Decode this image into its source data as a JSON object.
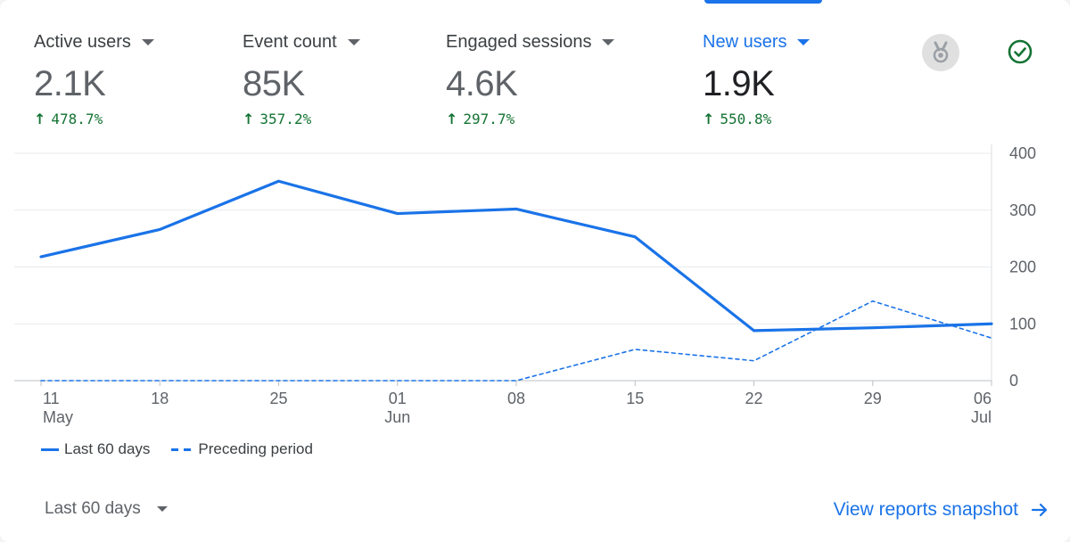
{
  "metrics": [
    {
      "label": "Active users",
      "value": "2.1K",
      "change": "478.7%",
      "selected": false
    },
    {
      "label": "Event count",
      "value": "85K",
      "change": "357.2%",
      "selected": false
    },
    {
      "label": "Engaged sessions",
      "value": "4.6K",
      "change": "297.7%",
      "selected": false
    },
    {
      "label": "New users",
      "value": "1.9K",
      "change": "550.8%",
      "selected": true
    }
  ],
  "icons": {
    "medal": "medal-icon",
    "check": "check-circle-icon",
    "change_arrow": "arrow-up-icon",
    "link_arrow": "arrow-right-icon"
  },
  "colors": {
    "accent": "#1a73e8",
    "positive": "#137333",
    "text": "#3c4043",
    "muted": "#5f6368",
    "grid": "#e0e0e0"
  },
  "chart_data": {
    "type": "line",
    "x_ticks": [
      {
        "day": "11",
        "month": "May"
      },
      {
        "day": "18",
        "month": ""
      },
      {
        "day": "25",
        "month": ""
      },
      {
        "day": "01",
        "month": "Jun"
      },
      {
        "day": "08",
        "month": ""
      },
      {
        "day": "15",
        "month": ""
      },
      {
        "day": "22",
        "month": ""
      },
      {
        "day": "29",
        "month": ""
      },
      {
        "day": "06",
        "month": "Jul"
      }
    ],
    "y_ticks": [
      "400",
      "300",
      "200",
      "100",
      "0"
    ],
    "ylim": [
      0,
      400
    ],
    "y_axis_position": "right",
    "grid": true,
    "series": [
      {
        "name": "Last 60 days",
        "style": "solid",
        "values": [
          218,
          266,
          351,
          294,
          302,
          253,
          88,
          93,
          100
        ]
      },
      {
        "name": "Preceding period",
        "style": "dashed",
        "values": [
          0,
          0,
          0,
          0,
          0,
          55,
          35,
          140,
          75
        ]
      }
    ]
  },
  "legend": {
    "items": [
      {
        "label": "Last 60 days",
        "style": "solid"
      },
      {
        "label": "Preceding period",
        "style": "dashed"
      }
    ]
  },
  "footer": {
    "date_range": "Last 60 days",
    "view_link": "View reports snapshot"
  }
}
